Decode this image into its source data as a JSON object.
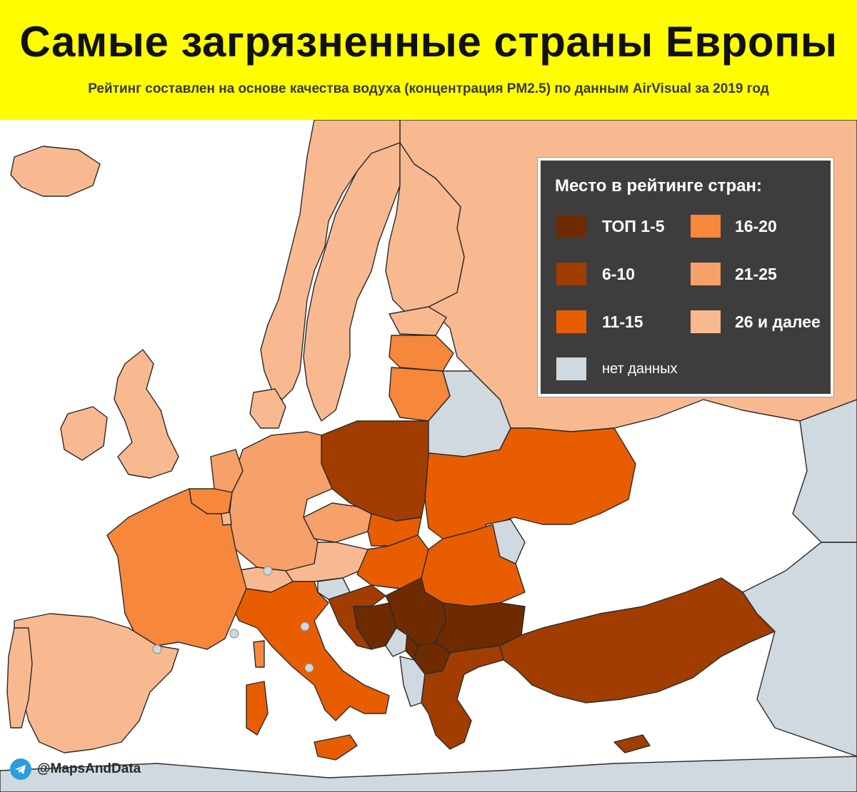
{
  "header": {
    "title": "Самые загрязненные страны Европы",
    "subtitle": "Рейтинг составлен на основе качества водуха (концентрация PM2.5) по данным AirVisual за 2019 год"
  },
  "legend": {
    "title": "Место в рейтинге стран:",
    "items": [
      {
        "label": "ТОП 1-5",
        "color": "#6f2b00"
      },
      {
        "label": "6-10",
        "color": "#a13d00"
      },
      {
        "label": "11-15",
        "color": "#e85d00"
      },
      {
        "label": "16-20",
        "color": "#f7873a"
      },
      {
        "label": "21-25",
        "color": "#f6a06a"
      },
      {
        "label": "26 и далее",
        "color": "#f9b990"
      },
      {
        "label": "нет данных",
        "color": "#d0d9df"
      }
    ]
  },
  "colors": {
    "sea": "#ffffff",
    "border": "#2a2a2a",
    "background_land": "#d0d9df",
    "header": "#fffd00"
  },
  "credit": {
    "handle": "@MapsAndData",
    "icon": "telegram-icon"
  }
}
